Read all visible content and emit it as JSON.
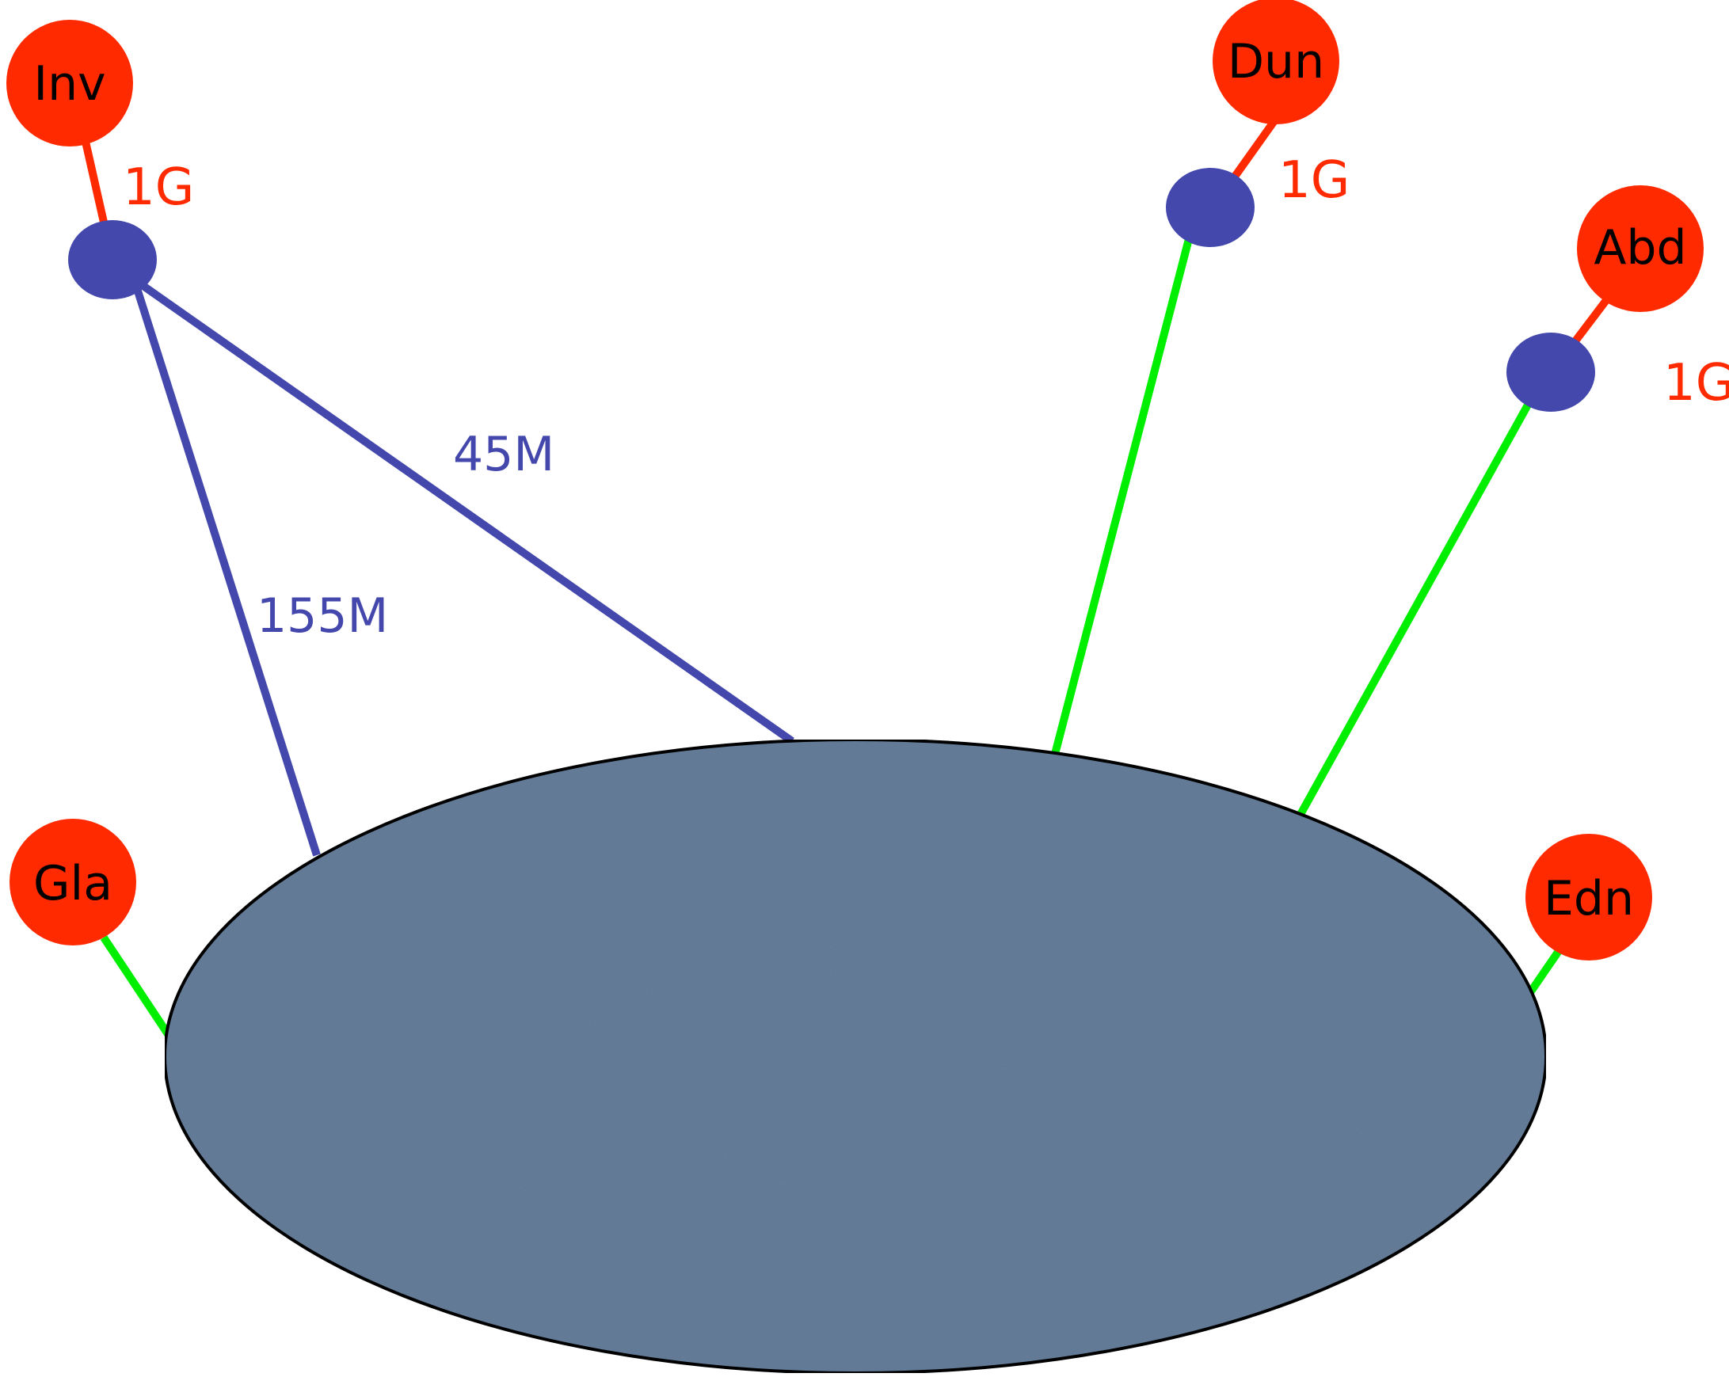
{
  "colors": {
    "site_node": "#ff2a00",
    "router_node": "#4448ac",
    "link_red": "#ff2a00",
    "link_green": "#00ee00",
    "link_blue": "#4448ac",
    "cloud_fill": "#657d99",
    "cloud_stroke": "#000000"
  },
  "nodes": {
    "inv": {
      "label": "Inv"
    },
    "dun": {
      "label": "Dun"
    },
    "abd": {
      "label": "Abd"
    },
    "gla": {
      "label": "Gla"
    },
    "edn": {
      "label": "Edn"
    }
  },
  "links": {
    "inv_uplink": {
      "label": "1G"
    },
    "dun_uplink": {
      "label": "1G"
    },
    "abd_uplink": {
      "label": "1G"
    },
    "inv_to_cloud_top": {
      "label": "45M"
    },
    "inv_to_cloud_left": {
      "label": "155M"
    }
  }
}
